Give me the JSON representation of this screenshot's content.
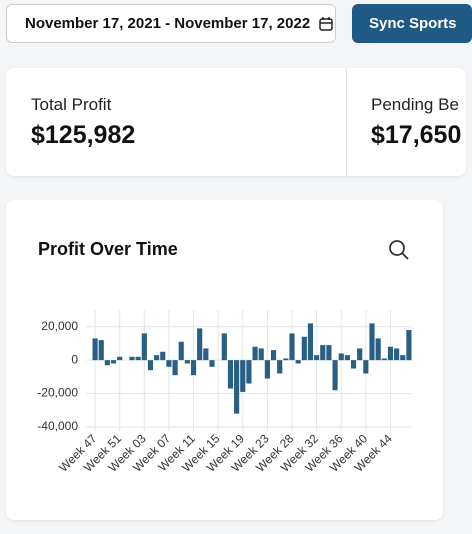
{
  "date_range": "November 17, 2021 - November 17, 2022",
  "sync_button": "Sync Sports",
  "stats": [
    {
      "label": "Total Profit",
      "value": "$125,982"
    },
    {
      "label": "Pending Be",
      "value": "$17,650"
    }
  ],
  "chart_data": {
    "type": "bar",
    "title": "Profit Over Time",
    "color": "#2a5f84",
    "categories": [
      "Week 47",
      null,
      null,
      null,
      "Week 51",
      null,
      null,
      null,
      "Week 03",
      null,
      null,
      null,
      "Week 07",
      null,
      null,
      null,
      "Week 11",
      null,
      null,
      null,
      "Week 15",
      null,
      null,
      null,
      "Week 19",
      null,
      null,
      null,
      "Week 23",
      null,
      null,
      null,
      "Week 28",
      null,
      null,
      null,
      "Week 32",
      null,
      null,
      null,
      "Week 36",
      null,
      null,
      null,
      "Week 40",
      null,
      null,
      null,
      "Week 44",
      null,
      null,
      null
    ],
    "values": [
      13000,
      12000,
      -3000,
      -2000,
      2000,
      0,
      2000,
      2000,
      16000,
      -6000,
      3000,
      5000,
      -4000,
      -9000,
      11000,
      -2000,
      -9000,
      19000,
      7000,
      -4000,
      0,
      16000,
      -17000,
      -32000,
      -19000,
      -14000,
      8000,
      7000,
      -11000,
      6000,
      -8000,
      1000,
      16000,
      -2000,
      14000,
      22000,
      3000,
      9000,
      9000,
      -18000,
      4000,
      3000,
      -5000,
      7000,
      -8000,
      22000,
      13000,
      1000,
      8000,
      7000,
      3000,
      18000
    ],
    "ylim": [
      -40000,
      30000
    ],
    "yticks": [
      {
        "value": -40000,
        "label": "-40,000"
      },
      {
        "value": -20000,
        "label": "-20,000"
      },
      0,
      {
        "value": 20000,
        "label": "20,000"
      }
    ],
    "grid": true
  }
}
